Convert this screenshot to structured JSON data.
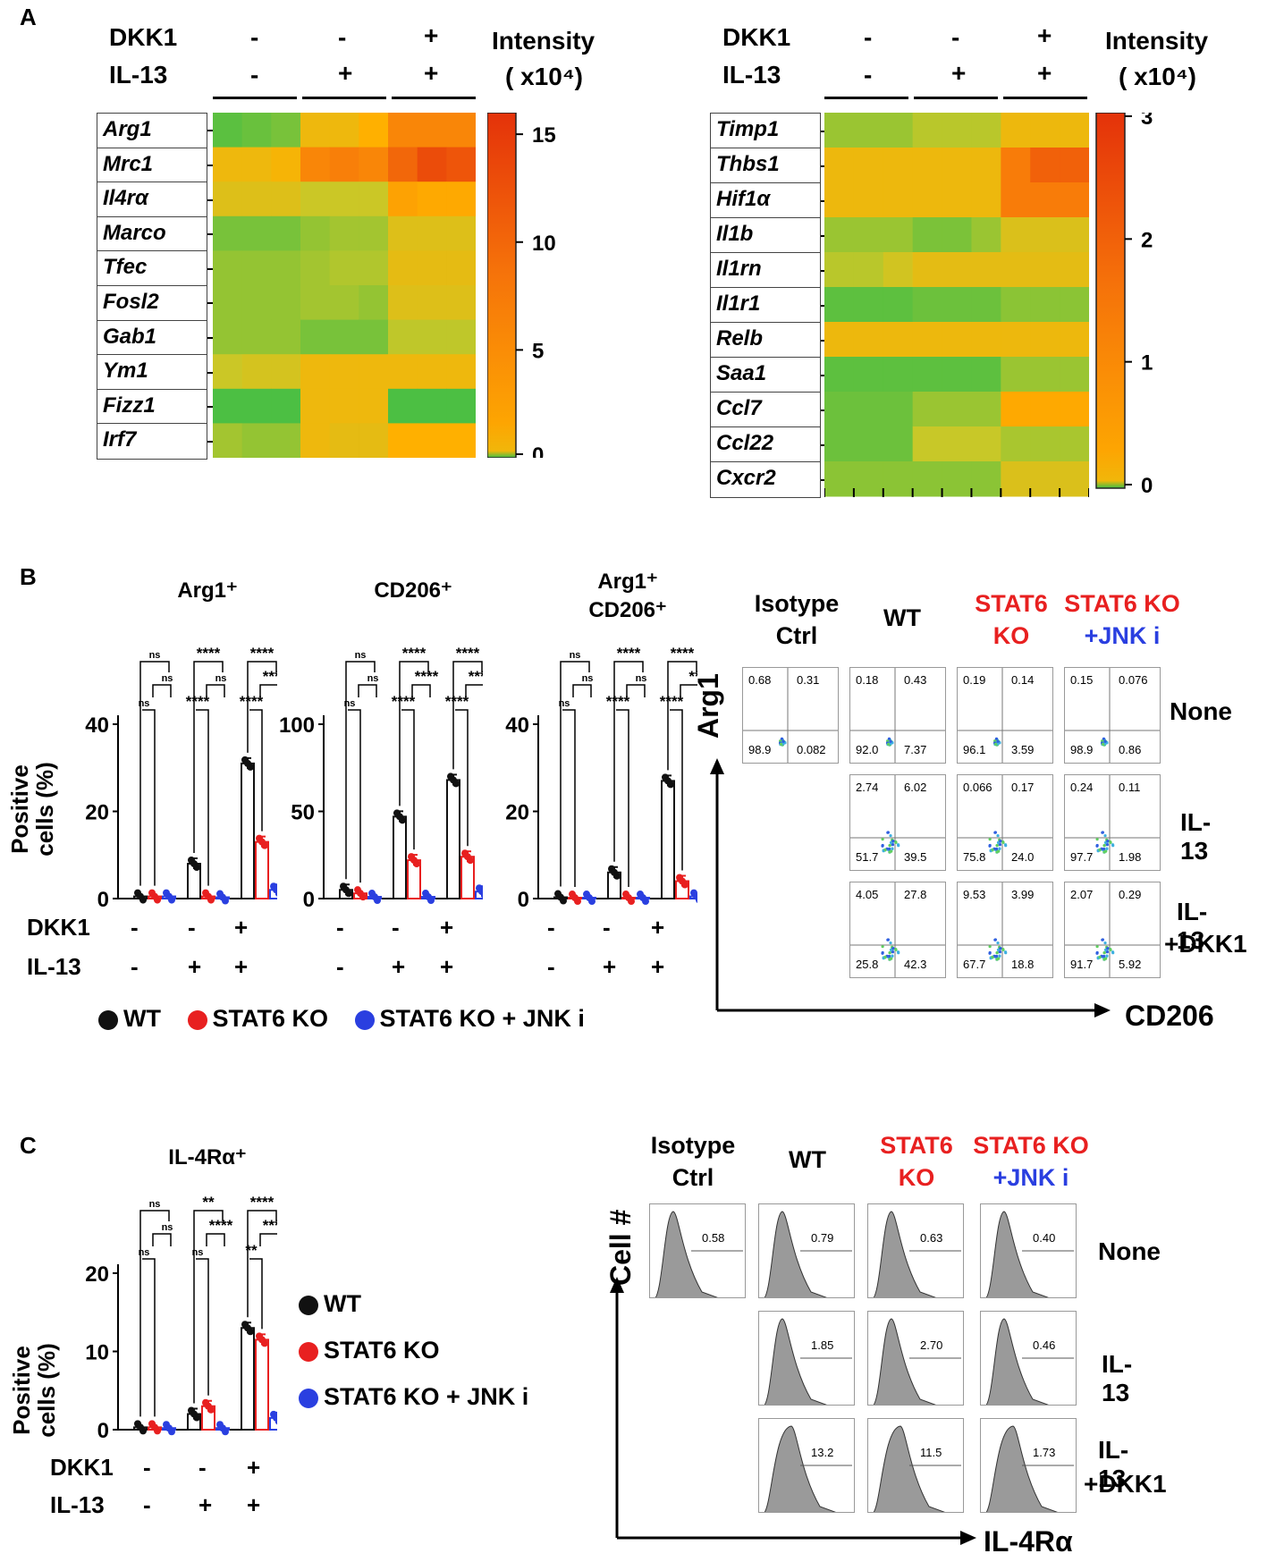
{
  "panels": {
    "A": "A",
    "B": "B",
    "C": "C"
  },
  "colors": {
    "wt": "#111111",
    "stat6ko": "#e82020",
    "jnk": "#2a3fe0",
    "hm_low": "#3fbf3f",
    "hm_mid": "#ffae00",
    "hm_high": "#e53a0e"
  },
  "panelA": {
    "row_dkk1": "DKK1",
    "row_il13": "IL-13",
    "dkk1_signs": [
      "-",
      "-",
      "+"
    ],
    "il13_signs": [
      "-",
      "+",
      "+"
    ],
    "intensity_label_1": "Intensity",
    "intensity_label_2": "( x10⁴)",
    "left": {
      "genes": [
        "Arg1",
        "Mrc1",
        "Il4rα",
        "Marco",
        "Tfec",
        "Fosl2",
        "Gab1",
        "Ym1",
        "Fizz1",
        "Irf7"
      ],
      "ticks": [
        "15",
        "10",
        "5",
        "0"
      ],
      "max": 16,
      "values": [
        [
          1,
          1.5,
          2,
          7,
          7,
          8,
          11,
          11,
          11
        ],
        [
          7,
          7,
          7.5,
          11,
          11.5,
          11,
          13,
          14.5,
          14
        ],
        [
          6,
          6,
          6,
          5,
          5,
          5,
          9,
          8.5,
          8.5
        ],
        [
          2,
          2,
          2,
          3,
          3.5,
          3.5,
          6,
          6,
          6
        ],
        [
          3,
          3,
          3,
          3.5,
          4,
          4,
          6.5,
          6.5,
          6.5
        ],
        [
          3,
          3,
          3,
          3.5,
          3.5,
          3,
          6,
          6,
          6
        ],
        [
          3,
          3,
          3,
          2,
          2,
          2,
          4.5,
          4.5,
          4.5
        ],
        [
          5,
          5.5,
          5.5,
          7,
          7,
          7,
          7,
          7,
          7
        ],
        [
          0.5,
          0.5,
          0.5,
          7,
          7,
          7,
          0.5,
          0.5,
          0.5
        ],
        [
          3.5,
          3,
          3,
          7,
          6.5,
          6.5,
          8,
          8,
          8
        ]
      ]
    },
    "right": {
      "genes": [
        "Timp1",
        "Thbs1",
        "Hif1α",
        "Il1b",
        "Il1rn",
        "Il1r1",
        "Relb",
        "Saa1",
        "Ccl7",
        "Ccl22",
        "Cxcr2"
      ],
      "ticks": [
        "3",
        "2",
        "1",
        "0"
      ],
      "max": 3,
      "values": [
        [
          0.6,
          0.6,
          0.6,
          0.8,
          0.8,
          0.8,
          1.3,
          1.3,
          1.3
        ],
        [
          1.3,
          1.3,
          1.3,
          1.3,
          1.3,
          1.3,
          2.2,
          2.5,
          2.5
        ],
        [
          1.3,
          1.3,
          1.3,
          1.3,
          1.3,
          1.3,
          2.2,
          2.2,
          2.2
        ],
        [
          0.6,
          0.6,
          0.6,
          0.4,
          0.4,
          0.6,
          1.1,
          1.1,
          1.1
        ],
        [
          0.8,
          0.8,
          1.0,
          1.2,
          1.2,
          1.2,
          1.2,
          1.2,
          1.2
        ],
        [
          0.2,
          0.2,
          0.2,
          0.3,
          0.3,
          0.3,
          0.5,
          0.5,
          0.5
        ],
        [
          1.3,
          1.3,
          1.3,
          1.3,
          1.3,
          1.3,
          1.3,
          1.3,
          1.3
        ],
        [
          0.2,
          0.2,
          0.2,
          0.2,
          0.2,
          0.2,
          0.6,
          0.6,
          0.6
        ],
        [
          0.3,
          0.3,
          0.3,
          0.6,
          0.6,
          0.6,
          1.6,
          1.6,
          1.6
        ],
        [
          0.3,
          0.3,
          0.3,
          0.9,
          0.9,
          0.9,
          0.7,
          0.7,
          0.7
        ],
        [
          0.5,
          0.5,
          0.5,
          0.5,
          0.5,
          0.5,
          1.1,
          1.1,
          1.1
        ]
      ]
    }
  },
  "chart_data": [
    {
      "type": "bar",
      "title": "Arg1⁺",
      "ylabel": "Positive cells (%)",
      "categories": [
        "-/-",
        "-/+",
        "+/+"
      ],
      "ylim": [
        0,
        40
      ],
      "yticks": [
        "0",
        "20",
        "40"
      ],
      "series": [
        {
          "name": "WT",
          "values": [
            0.5,
            8,
            31
          ]
        },
        {
          "name": "STAT6 KO",
          "values": [
            0.5,
            0.5,
            13
          ]
        },
        {
          "name": "STAT6 KO + JNK i",
          "values": [
            0.5,
            0.3,
            2
          ]
        }
      ],
      "sig_top": [
        "ns",
        "****",
        "****"
      ],
      "sig_mid": [
        "ns",
        "ns",
        "****"
      ],
      "sig_low": [
        "ns",
        "****",
        "****"
      ]
    },
    {
      "type": "bar",
      "title": "CD206⁺",
      "ylabel": "",
      "categories": [
        "-/-",
        "-/+",
        "+/+"
      ],
      "ylim": [
        0,
        100
      ],
      "yticks": [
        "0",
        "50",
        "100"
      ],
      "series": [
        {
          "name": "WT",
          "values": [
            5,
            47,
            68
          ]
        },
        {
          "name": "STAT6 KO",
          "values": [
            3,
            22,
            24
          ]
        },
        {
          "name": "STAT6 KO + JNK i",
          "values": [
            1,
            1,
            4
          ]
        }
      ],
      "sig_top": [
        "ns",
        "****",
        "****"
      ],
      "sig_mid": [
        "ns",
        "****",
        "****"
      ],
      "sig_low": [
        "ns",
        "****",
        "****"
      ]
    },
    {
      "type": "bar",
      "title": "Arg1⁺ CD206⁺",
      "title1": "Arg1⁺",
      "title2": "CD206⁺",
      "ylabel": "",
      "categories": [
        "-/-",
        "-/+",
        "+/+"
      ],
      "ylim": [
        0,
        40
      ],
      "yticks": [
        "0",
        "20",
        "40"
      ],
      "series": [
        {
          "name": "WT",
          "values": [
            0.3,
            6,
            27
          ]
        },
        {
          "name": "STAT6 KO",
          "values": [
            0.2,
            0.2,
            4
          ]
        },
        {
          "name": "STAT6 KO + JNK i",
          "values": [
            0.2,
            0.2,
            0.5
          ]
        }
      ],
      "sig_top": [
        "ns",
        "****",
        "****"
      ],
      "sig_mid": [
        "ns",
        "ns",
        "**"
      ],
      "sig_low": [
        "ns",
        "****",
        "****"
      ]
    },
    {
      "type": "bar",
      "title": "IL-4Rα⁺",
      "ylabel": "Positive cells (%)",
      "categories": [
        "-/-",
        "-/+",
        "+/+"
      ],
      "ylim": [
        0,
        20
      ],
      "yticks": [
        "0",
        "10",
        "20"
      ],
      "series": [
        {
          "name": "WT",
          "values": [
            0.3,
            2,
            13
          ]
        },
        {
          "name": "STAT6 KO",
          "values": [
            0.3,
            3,
            11.5
          ]
        },
        {
          "name": "STAT6 KO + JNK i",
          "values": [
            0.2,
            0.2,
            1.5
          ]
        }
      ],
      "sig_top": [
        "ns",
        "**",
        "****"
      ],
      "sig_mid": [
        "ns",
        "****",
        "****"
      ],
      "sig_low": [
        "ns",
        "ns",
        "**"
      ]
    }
  ],
  "panelB": {
    "ylabel1": "Positive",
    "ylabel2": "cells (%)",
    "row_dkk1": "DKK1",
    "row_il13": "IL-13",
    "dkk1_signs": [
      "-",
      "-",
      "+"
    ],
    "il13_signs": [
      "-",
      "+",
      "+"
    ],
    "legend": [
      "WT",
      "STAT6 KO",
      "STAT6 KO + JNK i"
    ],
    "flow": {
      "cols": [
        [
          "Isotype",
          "Ctrl"
        ],
        [
          "WT",
          ""
        ],
        [
          "STAT6",
          "KO"
        ],
        [
          "STAT6 KO",
          "+JNK i"
        ]
      ],
      "rows": [
        "None",
        "IL-13",
        "IL-13",
        "+DKK1"
      ],
      "yaxis": "Arg1",
      "xaxis": "CD206",
      "quads": [
        [
          [
            "0.68",
            "0.31",
            "98.9",
            "0.082"
          ],
          [
            "0.18",
            "0.43",
            "92.0",
            "7.37"
          ],
          [
            "0.19",
            "0.14",
            "96.1",
            "3.59"
          ],
          [
            "0.15",
            "0.076",
            "98.9",
            "0.86"
          ]
        ],
        [
          null,
          [
            "2.74",
            "6.02",
            "51.7",
            "39.5"
          ],
          [
            "0.066",
            "0.17",
            "75.8",
            "24.0"
          ],
          [
            "0.24",
            "0.11",
            "97.7",
            "1.98"
          ]
        ],
        [
          null,
          [
            "4.05",
            "27.8",
            "25.8",
            "42.3"
          ],
          [
            "9.53",
            "3.99",
            "67.7",
            "18.8"
          ],
          [
            "2.07",
            "0.29",
            "91.7",
            "5.92"
          ]
        ]
      ]
    }
  },
  "panelC": {
    "ylabel1": "Positive",
    "ylabel2": "cells (%)",
    "row_dkk1": "DKK1",
    "row_il13": "IL-13",
    "dkk1_signs": [
      "-",
      "-",
      "+"
    ],
    "il13_signs": [
      "-",
      "+",
      "+"
    ],
    "legend": [
      "WT",
      "STAT6 KO",
      "STAT6 KO + JNK i"
    ],
    "hist": {
      "yaxis": "Cell #",
      "xaxis": "IL-4Rα",
      "values": [
        [
          "0.58",
          "0.79",
          "0.63",
          "0.40"
        ],
        [
          null,
          "1.85",
          "2.70",
          "0.46"
        ],
        [
          null,
          "13.2",
          "11.5",
          "1.73"
        ]
      ]
    }
  }
}
